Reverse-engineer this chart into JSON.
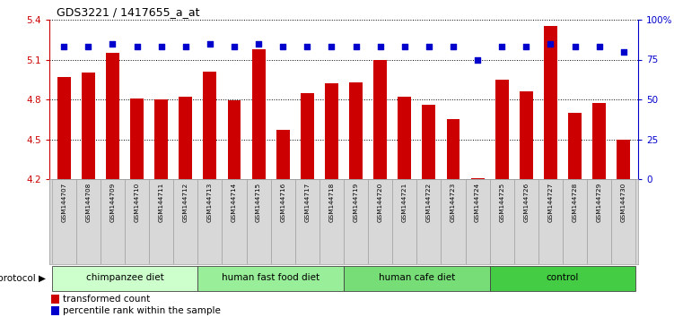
{
  "title": "GDS3221 / 1417655_a_at",
  "samples": [
    "GSM144707",
    "GSM144708",
    "GSM144709",
    "GSM144710",
    "GSM144711",
    "GSM144712",
    "GSM144713",
    "GSM144714",
    "GSM144715",
    "GSM144716",
    "GSM144717",
    "GSM144718",
    "GSM144719",
    "GSM144720",
    "GSM144721",
    "GSM144722",
    "GSM144723",
    "GSM144724",
    "GSM144725",
    "GSM144726",
    "GSM144727",
    "GSM144728",
    "GSM144729",
    "GSM144730"
  ],
  "bar_values": [
    4.97,
    5.0,
    5.15,
    4.81,
    4.8,
    4.82,
    5.01,
    4.79,
    5.18,
    4.57,
    4.85,
    4.92,
    4.93,
    5.1,
    4.82,
    4.76,
    4.65,
    4.21,
    4.95,
    4.86,
    5.35,
    4.7,
    4.77,
    4.5
  ],
  "percentile_values": [
    83,
    83,
    85,
    83,
    83,
    83,
    85,
    83,
    85,
    83,
    83,
    83,
    83,
    83,
    83,
    83,
    83,
    75,
    83,
    83,
    85,
    83,
    83,
    80
  ],
  "bar_color": "#cc0000",
  "dot_color": "#0000cc",
  "ylim_left": [
    4.2,
    5.4
  ],
  "ylim_right": [
    0,
    100
  ],
  "yticks_left": [
    4.2,
    4.5,
    4.8,
    5.1,
    5.4
  ],
  "yticks_right": [
    0,
    25,
    50,
    75,
    100
  ],
  "ytick_labels_right": [
    "0",
    "25",
    "50",
    "75",
    "100%"
  ],
  "groups": [
    {
      "label": "chimpanzee diet",
      "start": 0,
      "end": 6,
      "color": "#ccffcc"
    },
    {
      "label": "human fast food diet",
      "start": 6,
      "end": 12,
      "color": "#99ee99"
    },
    {
      "label": "human cafe diet",
      "start": 12,
      "end": 18,
      "color": "#77dd77"
    },
    {
      "label": "control",
      "start": 18,
      "end": 24,
      "color": "#44cc44"
    }
  ],
  "protocol_label": "protocol",
  "legend_bar_label": "transformed count",
  "legend_dot_label": "percentile rank within the sample",
  "fig_bg": "#ffffff"
}
